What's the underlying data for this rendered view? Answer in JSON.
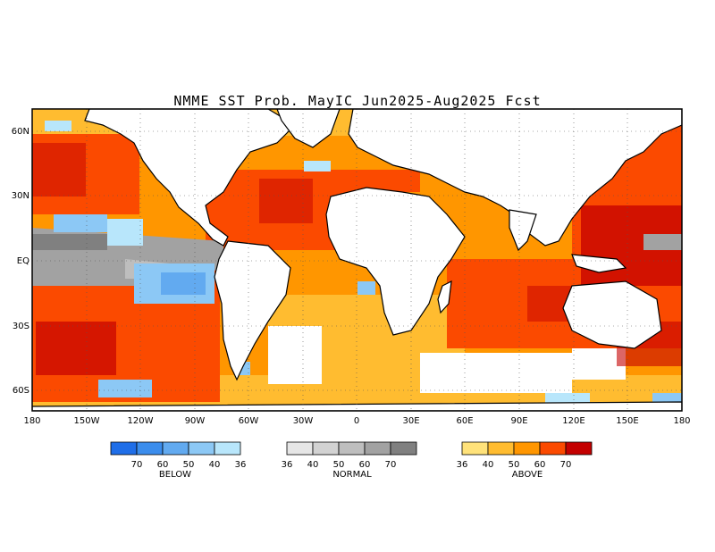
{
  "title": "NMME SST Prob. MayIC  Jun2025-Aug2025 Fcst",
  "map": {
    "lat_ticks": [
      "60N",
      "30N",
      "EQ",
      "30S",
      "60S"
    ],
    "lon_ticks": [
      "180",
      "150W",
      "120W",
      "90W",
      "60W",
      "30W",
      "0",
      "30E",
      "60E",
      "90E",
      "120E",
      "150E",
      "180"
    ],
    "lat_range": [
      -70,
      70
    ],
    "lon_range": [
      -180,
      180
    ],
    "gridlines": "dotted",
    "land_color": "#ffffff",
    "coast_color": "#000000"
  },
  "legend": [
    {
      "label": "BELOW",
      "colors": [
        "#1f6ee8",
        "#3b8ded",
        "#62aaf0",
        "#8cc8f5",
        "#b8e6fb"
      ],
      "ticks": [
        "70",
        "60",
        "50",
        "40",
        "36"
      ]
    },
    {
      "label": "NORMAL",
      "colors": [
        "#e6e6e6",
        "#d2d2d2",
        "#bebebe",
        "#a2a2a2",
        "#808080"
      ],
      "ticks": [
        "36",
        "40",
        "50",
        "60",
        "70"
      ]
    },
    {
      "label": "ABOVE",
      "colors": [
        "#ffe27a",
        "#ffbc30",
        "#ff9600",
        "#fb4a00",
        "#c40000"
      ],
      "ticks": [
        "36",
        "40",
        "50",
        "60",
        "70"
      ]
    }
  ]
}
